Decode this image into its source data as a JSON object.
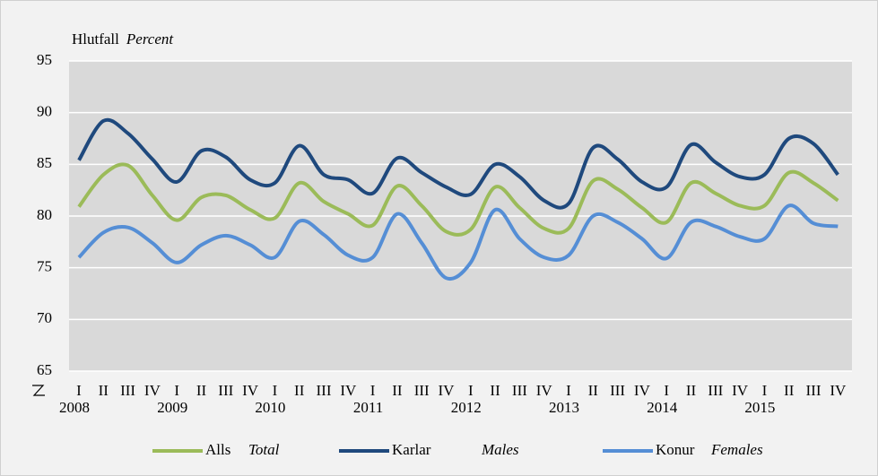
{
  "chart_data": {
    "type": "line",
    "ylabel": "Hlutfall",
    "ylabel_en": "Percent",
    "categories": [
      "I",
      "II",
      "III",
      "IV",
      "I",
      "II",
      "III",
      "IV",
      "I",
      "II",
      "III",
      "IV",
      "I",
      "II",
      "III",
      "IV",
      "I",
      "II",
      "III",
      "IV",
      "I",
      "II",
      "III",
      "IV",
      "I",
      "II",
      "III",
      "IV",
      "I",
      "II",
      "III",
      "IV"
    ],
    "year_labels": [
      "2008",
      "2009",
      "2010",
      "2011",
      "2012",
      "2013",
      "2014",
      "2015"
    ],
    "ylim": [
      65,
      95
    ],
    "yticks": [
      65,
      70,
      75,
      80,
      85,
      90,
      95
    ],
    "grid": true,
    "legend": "bottom",
    "series": [
      {
        "name": "Alls",
        "name_en": "Total",
        "color": "#9bbb59",
        "values": [
          80.9,
          84.0,
          84.9,
          82.0,
          79.6,
          81.8,
          82.0,
          80.6,
          79.8,
          83.2,
          81.4,
          80.2,
          79.1,
          82.9,
          81.0,
          78.5,
          78.7,
          82.8,
          80.8,
          78.8,
          78.8,
          83.4,
          82.6,
          80.8,
          79.4,
          83.2,
          82.2,
          81.0,
          81.0,
          84.2,
          83.2,
          81.5
        ]
      },
      {
        "name": "Karlar",
        "name_en": "Males",
        "color": "#1f497d",
        "values": [
          85.4,
          89.2,
          88.0,
          85.5,
          83.3,
          86.3,
          85.7,
          83.5,
          83.2,
          86.8,
          84.0,
          83.5,
          82.2,
          85.6,
          84.2,
          82.8,
          82.1,
          85.0,
          83.8,
          81.5,
          81.2,
          86.6,
          85.5,
          83.3,
          82.8,
          86.9,
          85.2,
          83.8,
          84.0,
          87.5,
          87.0,
          84.0
        ]
      },
      {
        "name": "Konur",
        "name_en": "Females",
        "color": "#558ed5",
        "values": [
          76.0,
          78.4,
          78.9,
          77.4,
          75.5,
          77.2,
          78.1,
          77.2,
          76.0,
          79.5,
          78.2,
          76.2,
          76.0,
          80.2,
          77.4,
          74.0,
          75.5,
          80.6,
          77.8,
          76.0,
          76.2,
          80.0,
          79.4,
          77.8,
          75.9,
          79.4,
          79.0,
          78.0,
          77.8,
          81.0,
          79.3,
          79.0
        ]
      }
    ]
  }
}
